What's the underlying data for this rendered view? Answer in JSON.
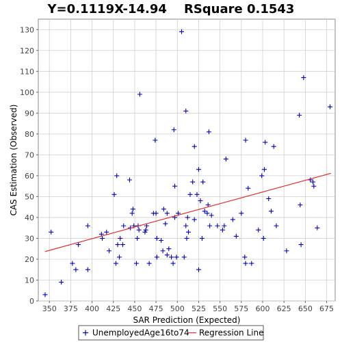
{
  "chart_data": {
    "type": "scatter",
    "title": "Y=0.1119X-14.94    RSquare 0.1543",
    "xlabel": "SAR Prediction (Expected)",
    "ylabel": "CAS Estimation (Observed)",
    "xlim": [
      337,
      685
    ],
    "ylim": [
      0,
      135
    ],
    "xticks": [
      350,
      375,
      400,
      425,
      450,
      475,
      500,
      525,
      550,
      575,
      600,
      625,
      650,
      675
    ],
    "yticks": [
      0,
      10,
      20,
      30,
      40,
      50,
      60,
      70,
      80,
      90,
      100,
      110,
      120,
      130
    ],
    "grid": true,
    "legend_position": "bottom",
    "series": [
      {
        "name": "UnemployedAge16to74",
        "kind": "scatter",
        "marker": "+",
        "color": "#0000c0",
        "points": [
          [
            345,
            3
          ],
          [
            352,
            33
          ],
          [
            364,
            9
          ],
          [
            377,
            18
          ],
          [
            381,
            15
          ],
          [
            384,
            27
          ],
          [
            395,
            15
          ],
          [
            395,
            36
          ],
          [
            411,
            32
          ],
          [
            412,
            30
          ],
          [
            417,
            33
          ],
          [
            420,
            24
          ],
          [
            426,
            51
          ],
          [
            428,
            18
          ],
          [
            429,
            60
          ],
          [
            430,
            27
          ],
          [
            432,
            21
          ],
          [
            433,
            30
          ],
          [
            436,
            27
          ],
          [
            437,
            36
          ],
          [
            444,
            58
          ],
          [
            445,
            35
          ],
          [
            447,
            42
          ],
          [
            448,
            44
          ],
          [
            449,
            36
          ],
          [
            452,
            18
          ],
          [
            453,
            30
          ],
          [
            454,
            36
          ],
          [
            455,
            34
          ],
          [
            456,
            99
          ],
          [
            462,
            33
          ],
          [
            463,
            34
          ],
          [
            464,
            36
          ],
          [
            467,
            18
          ],
          [
            472,
            42
          ],
          [
            474,
            77
          ],
          [
            475,
            42
          ],
          [
            476,
            21
          ],
          [
            476,
            30
          ],
          [
            481,
            29
          ],
          [
            483,
            24
          ],
          [
            484,
            44
          ],
          [
            486,
            37
          ],
          [
            488,
            22
          ],
          [
            488,
            42
          ],
          [
            490,
            25
          ],
          [
            493,
            21
          ],
          [
            495,
            18
          ],
          [
            496,
            82
          ],
          [
            497,
            40
          ],
          [
            497,
            55
          ],
          [
            499,
            21
          ],
          [
            501,
            42
          ],
          [
            505,
            129
          ],
          [
            508,
            21
          ],
          [
            510,
            36
          ],
          [
            510,
            91
          ],
          [
            511,
            30
          ],
          [
            512,
            40
          ],
          [
            513,
            33
          ],
          [
            515,
            51
          ],
          [
            518,
            57
          ],
          [
            520,
            39
          ],
          [
            520,
            74
          ],
          [
            523,
            51
          ],
          [
            525,
            63
          ],
          [
            525,
            15
          ],
          [
            527,
            48
          ],
          [
            529,
            30
          ],
          [
            530,
            57
          ],
          [
            532,
            43
          ],
          [
            535,
            42
          ],
          [
            536,
            46
          ],
          [
            537,
            81
          ],
          [
            538,
            36
          ],
          [
            540,
            41
          ],
          [
            547,
            36
          ],
          [
            553,
            34
          ],
          [
            555,
            36
          ],
          [
            557,
            68
          ],
          [
            565,
            39
          ],
          [
            569,
            31
          ],
          [
            575,
            42
          ],
          [
            579,
            21
          ],
          [
            580,
            18
          ],
          [
            580,
            77
          ],
          [
            583,
            54
          ],
          [
            587,
            18
          ],
          [
            595,
            34
          ],
          [
            599,
            60
          ],
          [
            601,
            30
          ],
          [
            602,
            63
          ],
          [
            603,
            76
          ],
          [
            607,
            49
          ],
          [
            610,
            43
          ],
          [
            613,
            74
          ],
          [
            616,
            36
          ],
          [
            628,
            24
          ],
          [
            643,
            89
          ],
          [
            644,
            46
          ],
          [
            645,
            27
          ],
          [
            648,
            107
          ],
          [
            656,
            58
          ],
          [
            659,
            57
          ],
          [
            660,
            55
          ],
          [
            664,
            35
          ],
          [
            679,
            93
          ]
        ]
      },
      {
        "name": "Regression Line",
        "kind": "line",
        "color": "#e03030",
        "points": [
          [
            345,
            23.67
          ],
          [
            680,
            61.15
          ]
        ]
      }
    ]
  }
}
